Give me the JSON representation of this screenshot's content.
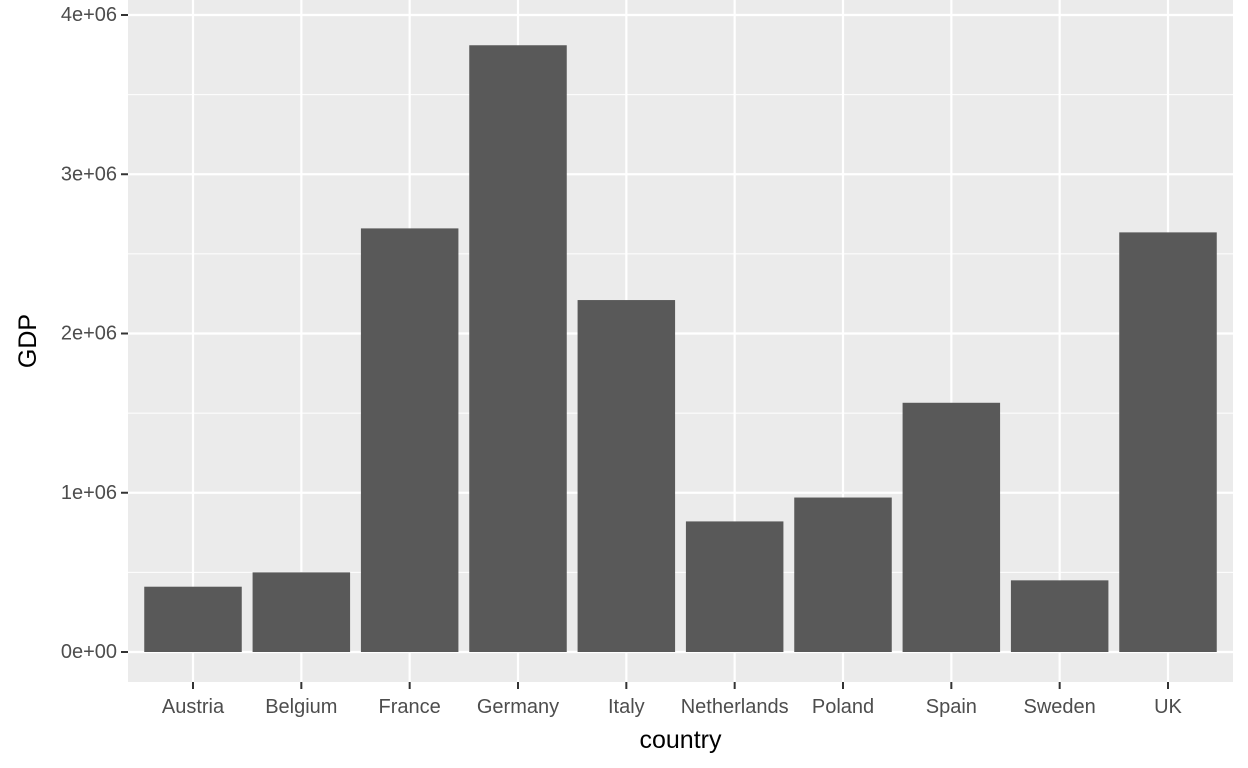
{
  "chart_data": {
    "type": "bar",
    "categories": [
      "Austria",
      "Belgium",
      "France",
      "Germany",
      "Italy",
      "Netherlands",
      "Poland",
      "Spain",
      "Sweden",
      "UK"
    ],
    "values": [
      410000,
      500000,
      2660000,
      3810000,
      2210000,
      820000,
      970000,
      1565000,
      450000,
      2635000
    ],
    "xlabel": "country",
    "ylabel": "GDP",
    "ylim": [
      -180000,
      4000000
    ],
    "yticks": [
      0,
      1000000,
      2000000,
      3000000,
      4000000
    ],
    "ytick_labels": [
      "0e+00",
      "1e+06",
      "2e+06",
      "3e+06",
      "4e+06"
    ],
    "grid": true,
    "colors": {
      "panel": "#ebebeb",
      "grid": "#ffffff",
      "bar": "#595959",
      "tick": "#333333"
    }
  }
}
